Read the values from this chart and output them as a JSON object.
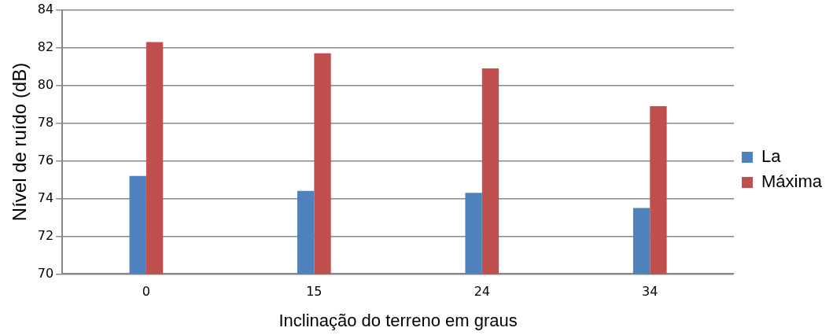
{
  "chart_data": {
    "type": "bar",
    "xlabel": "Inclinação do terreno em graus",
    "ylabel": "Nível de ruído (dB)",
    "categories": [
      "0",
      "15",
      "24",
      "34"
    ],
    "series": [
      {
        "name": "La",
        "color": "#4f81bd",
        "values": [
          75.2,
          74.4,
          74.3,
          73.5
        ]
      },
      {
        "name": "Máxima",
        "color": "#c0504d",
        "values": [
          82.3,
          81.7,
          80.9,
          78.9
        ]
      }
    ],
    "ylim": [
      70,
      84
    ],
    "yticks": [
      70,
      72,
      74,
      76,
      78,
      80,
      82,
      84
    ],
    "grid": "y",
    "legend": "right"
  }
}
